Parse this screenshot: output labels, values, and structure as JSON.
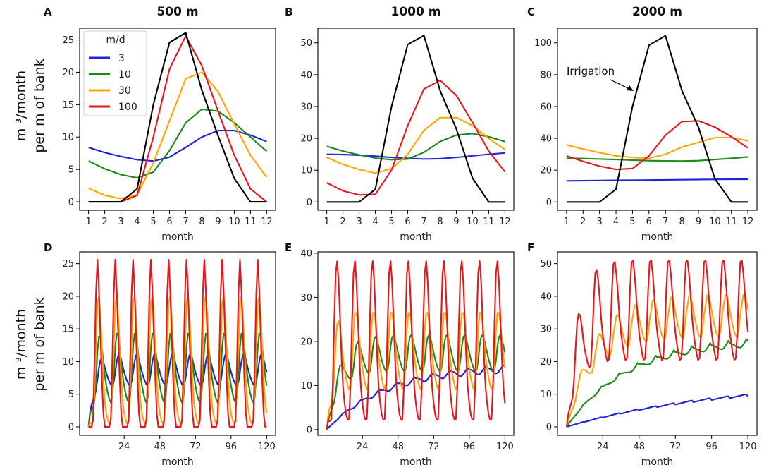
{
  "figure": {
    "ylabel_line1": "m ³/month",
    "ylabel_line2": "per m of bank",
    "legend": {
      "title": "m/d",
      "entries": [
        {
          "label": "3",
          "color": "#1f22d6"
        },
        {
          "label": "10",
          "color": "#1a8a1a"
        },
        {
          "label": "30",
          "color": "#ffa500"
        },
        {
          "label": "100",
          "color": "#e8161b"
        }
      ]
    },
    "irrigation_label": "Irrigation",
    "irrigation_color": "#000000"
  },
  "chart_data": [
    {
      "id": "A",
      "panel_label": "A",
      "title": "500 m",
      "type": "line",
      "xlabel": "month",
      "ylim": [
        -1.3,
        26.8
      ],
      "yticks": [
        0,
        5,
        10,
        15,
        20,
        25
      ],
      "xticks": [
        1,
        2,
        3,
        4,
        5,
        6,
        7,
        8,
        9,
        10,
        11,
        12
      ],
      "x": [
        1,
        2,
        3,
        4,
        5,
        6,
        7,
        8,
        9,
        10,
        11,
        12
      ],
      "series": [
        {
          "name": "3",
          "values": [
            8.4,
            7.6,
            7.0,
            6.5,
            6.3,
            6.9,
            8.4,
            10.0,
            11.0,
            11.0,
            10.3,
            9.3
          ]
        },
        {
          "name": "10",
          "values": [
            6.3,
            5.1,
            4.2,
            3.7,
            4.6,
            7.9,
            12.2,
            14.3,
            14.0,
            12.2,
            10.0,
            7.8
          ]
        },
        {
          "name": "30",
          "values": [
            2.1,
            1.0,
            0.5,
            1.1,
            6.0,
            12.5,
            19.0,
            20.0,
            17.0,
            12.0,
            7.2,
            3.8
          ]
        },
        {
          "name": "100",
          "values": [
            0.0,
            0.0,
            0.0,
            1.0,
            10.0,
            20.5,
            25.6,
            21.0,
            14.0,
            7.2,
            2.0,
            0.0
          ]
        },
        {
          "name": "Irrigation",
          "values": [
            0,
            0,
            0,
            2.0,
            15.0,
            24.6,
            26.1,
            17.2,
            10.2,
            3.6,
            0,
            0
          ]
        }
      ]
    },
    {
      "id": "B",
      "panel_label": "B",
      "title": "1000 m",
      "type": "line",
      "xlabel": "month",
      "ylim": [
        -2.6,
        54.6
      ],
      "yticks": [
        0,
        10,
        20,
        30,
        40,
        50
      ],
      "xticks": [
        1,
        2,
        3,
        4,
        5,
        6,
        7,
        8,
        9,
        10,
        11,
        12
      ],
      "x": [
        1,
        2,
        3,
        4,
        5,
        6,
        7,
        8,
        9,
        10,
        11,
        12
      ],
      "series": [
        {
          "name": "3",
          "values": [
            15.0,
            14.9,
            14.7,
            14.4,
            14.0,
            13.7,
            13.5,
            13.6,
            14.0,
            14.5,
            15.0,
            15.4
          ]
        },
        {
          "name": "10",
          "values": [
            17.5,
            16.0,
            14.8,
            13.8,
            13.3,
            13.5,
            15.6,
            19.0,
            21.0,
            21.5,
            20.5,
            19.0
          ]
        },
        {
          "name": "30",
          "values": [
            14.0,
            11.8,
            10.2,
            9.1,
            10.5,
            15.0,
            22.5,
            26.5,
            26.5,
            24.0,
            20.0,
            16.5
          ]
        },
        {
          "name": "100",
          "values": [
            6.0,
            3.5,
            2.2,
            2.4,
            10.0,
            24.0,
            35.5,
            38.2,
            33.5,
            25.0,
            16.0,
            9.5
          ]
        },
        {
          "name": "Irrigation",
          "values": [
            0,
            0,
            0,
            4.0,
            30.0,
            49.5,
            52.3,
            35.0,
            23.0,
            7.5,
            0,
            0
          ]
        }
      ]
    },
    {
      "id": "C",
      "panel_label": "C",
      "title": "2000 m",
      "type": "line",
      "xlabel": "month",
      "ylim": [
        -5.2,
        109.2
      ],
      "yticks": [
        0,
        20,
        40,
        60,
        80,
        100
      ],
      "xticks": [
        1,
        2,
        3,
        4,
        5,
        6,
        7,
        8,
        9,
        10,
        11,
        12
      ],
      "x": [
        1,
        2,
        3,
        4,
        5,
        6,
        7,
        8,
        9,
        10,
        11,
        12
      ],
      "series": [
        {
          "name": "3",
          "values": [
            13.3,
            13.4,
            13.5,
            13.6,
            13.7,
            13.8,
            13.9,
            14.0,
            14.1,
            14.2,
            14.3,
            14.3
          ]
        },
        {
          "name": "10",
          "values": [
            27.5,
            27.3,
            27.0,
            26.7,
            26.3,
            26.0,
            25.8,
            25.7,
            26.0,
            26.7,
            27.4,
            28.3
          ]
        },
        {
          "name": "30",
          "values": [
            35.8,
            33.3,
            31.0,
            29.0,
            28.0,
            27.5,
            30.0,
            34.5,
            37.5,
            40.5,
            40.5,
            38.5
          ]
        },
        {
          "name": "100",
          "values": [
            29.0,
            25.5,
            22.5,
            20.5,
            21.0,
            29.0,
            42.0,
            50.5,
            51.0,
            47.0,
            41.0,
            34.0
          ]
        },
        {
          "name": "Irrigation",
          "values": [
            0,
            0,
            0,
            8.0,
            60.0,
            98.5,
            104.5,
            70.0,
            47.0,
            14.5,
            0,
            0
          ]
        }
      ]
    },
    {
      "id": "D",
      "panel_label": "D",
      "title": "",
      "type": "line",
      "xlabel": "month",
      "ylim": [
        -1.3,
        26.8
      ],
      "xlim": [
        -6,
        126
      ],
      "yticks": [
        0,
        5,
        10,
        15,
        20,
        25
      ],
      "xticks": [
        24,
        48,
        72,
        96,
        120
      ],
      "cycle_months": 120,
      "series": [
        {
          "name": "3",
          "start_value": 0,
          "time_constant_months": 3,
          "annual_cycle": [
            8.4,
            7.6,
            7.0,
            6.5,
            6.3,
            6.9,
            8.4,
            10.0,
            11.0,
            11.0,
            10.3,
            9.3
          ]
        },
        {
          "name": "10",
          "start_value": 0,
          "time_constant_months": 2,
          "annual_cycle": [
            6.3,
            5.1,
            4.2,
            3.7,
            4.6,
            7.9,
            12.2,
            14.3,
            14.0,
            12.2,
            10.0,
            7.8
          ]
        },
        {
          "name": "30",
          "start_value": 0,
          "time_constant_months": 1,
          "annual_cycle": [
            2.1,
            1.0,
            0.5,
            1.1,
            6.0,
            12.5,
            19.0,
            20.0,
            17.0,
            12.0,
            7.2,
            3.8
          ]
        },
        {
          "name": "100",
          "start_value": 0,
          "time_constant_months": 0.5,
          "annual_cycle": [
            0.0,
            0.0,
            0.0,
            1.0,
            10.0,
            20.5,
            25.6,
            21.0,
            14.0,
            7.2,
            2.0,
            0.0
          ]
        }
      ]
    },
    {
      "id": "E",
      "panel_label": "E",
      "title": "",
      "type": "line",
      "xlabel": "month",
      "ylim": [
        -1.3,
        40.3
      ],
      "xlim": [
        -6,
        126
      ],
      "yticks": [
        0,
        10,
        20,
        30,
        40
      ],
      "xticks": [
        24,
        48,
        72,
        96,
        120
      ],
      "cycle_months": 120,
      "series": [
        {
          "name": "3",
          "start_value": 0,
          "time_constant_months": 40,
          "annual_cycle": [
            15.0,
            14.9,
            14.7,
            14.4,
            14.0,
            13.7,
            13.5,
            13.6,
            14.0,
            14.5,
            15.0,
            15.4
          ]
        },
        {
          "name": "10",
          "start_value": 0,
          "time_constant_months": 8,
          "annual_cycle": [
            17.5,
            16.0,
            14.8,
            13.8,
            13.3,
            13.5,
            15.6,
            19.0,
            21.0,
            21.5,
            20.5,
            19.0
          ]
        },
        {
          "name": "30",
          "start_value": 0,
          "time_constant_months": 3,
          "annual_cycle": [
            14.0,
            11.8,
            10.2,
            9.1,
            10.5,
            15.0,
            22.5,
            26.5,
            26.5,
            24.0,
            20.0,
            16.5
          ]
        },
        {
          "name": "100",
          "start_value": 0,
          "time_constant_months": 1,
          "annual_cycle": [
            6.0,
            3.5,
            2.2,
            2.4,
            10.0,
            24.0,
            35.5,
            38.2,
            33.5,
            25.0,
            16.0,
            9.5
          ]
        }
      ]
    },
    {
      "id": "F",
      "panel_label": "F",
      "title": "",
      "type": "line",
      "xlabel": "month",
      "ylim": [
        -2.6,
        53.6
      ],
      "xlim": [
        -6,
        126
      ],
      "yticks": [
        0,
        10,
        20,
        30,
        40,
        50
      ],
      "xticks": [
        24,
        48,
        72,
        96,
        120
      ],
      "cycle_months": 120,
      "series": [
        {
          "name": "3",
          "start_value": 0,
          "time_constant_months": 100,
          "annual_cycle": [
            13.3,
            13.4,
            13.5,
            13.6,
            13.7,
            13.8,
            13.9,
            14.0,
            14.1,
            14.2,
            14.3,
            14.3
          ]
        },
        {
          "name": "10",
          "start_value": 0,
          "time_constant_months": 40,
          "annual_cycle": [
            27.5,
            27.3,
            27.0,
            26.7,
            26.3,
            26.0,
            25.8,
            25.7,
            26.0,
            26.7,
            27.4,
            28.3
          ]
        },
        {
          "name": "30",
          "start_value": 0,
          "time_constant_months": 18,
          "annual_cycle": [
            35.8,
            33.3,
            31.0,
            29.0,
            28.0,
            27.5,
            30.0,
            34.5,
            37.5,
            40.5,
            40.5,
            38.5
          ]
        },
        {
          "name": "100",
          "start_value": 0,
          "time_constant_months": 7,
          "annual_cycle": [
            29.0,
            25.5,
            22.5,
            20.5,
            21.0,
            29.0,
            42.0,
            50.5,
            51.0,
            47.0,
            41.0,
            34.0
          ]
        }
      ]
    }
  ]
}
